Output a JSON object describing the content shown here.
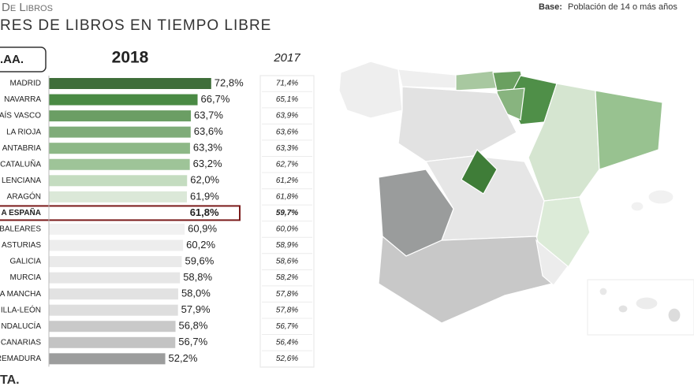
{
  "header": {
    "kicker": "De Libros",
    "title": "RES DE LIBROS EN TIEMPO LIBRE",
    "base_label": "Base:",
    "base_text": "Población de 14 o más años",
    "region_header": ".AA."
  },
  "chart_data": {
    "type": "bar",
    "orientation": "horizontal",
    "categories": [
      "MADRID",
      "NAVARRA",
      "AÍS VASCO",
      "LA RIOJA",
      "ANTABRIA",
      "CATALUÑA",
      "LENCIANA",
      "ARAGÓN",
      "A ESPAÑA",
      "BALEARES",
      "ASTURIAS",
      "GALICIA",
      "MURCIA",
      "A MANCHA",
      "ILLA-LEÓN",
      "NDALUCÍA",
      "CANARIAS",
      "REMADURA"
    ],
    "series": [
      {
        "name": "2018",
        "values": [
          72.8,
          66.7,
          63.7,
          63.6,
          63.3,
          63.2,
          62.0,
          61.9,
          61.8,
          60.9,
          60.2,
          59.6,
          58.8,
          58.0,
          57.9,
          56.8,
          56.7,
          52.2
        ],
        "value_labels": [
          "72,8%",
          "66,7%",
          "63,7%",
          "63,6%",
          "63,3%",
          "63,2%",
          "62,0%",
          "61,9%",
          "61,8%",
          "60,9%",
          "60,2%",
          "59,6%",
          "58,8%",
          "58,0%",
          "57,9%",
          "56,8%",
          "56,7%",
          "52,2%"
        ],
        "colors": [
          "#3f6e3a",
          "#4a8a44",
          "#6b9e64",
          "#7fac79",
          "#8db887",
          "#9ec498",
          "#c4dcc0",
          "#dbe8d8",
          "#ffffff",
          "#f1f1f1",
          "#ededed",
          "#eaeaea",
          "#e6e6e6",
          "#e2e2e2",
          "#dedede",
          "#c9c9c9",
          "#c3c3c3",
          "#9c9d9d"
        ]
      },
      {
        "name": "2017",
        "values": [
          71.4,
          65.1,
          63.9,
          63.6,
          63.3,
          62.7,
          61.2,
          61.8,
          59.7,
          60.0,
          58.9,
          58.6,
          58.2,
          57.8,
          57.8,
          56.7,
          56.4,
          52.6
        ],
        "value_labels": [
          "71,4%",
          "65,1%",
          "63,9%",
          "63,6%",
          "63,3%",
          "62,7%",
          "61,2%",
          "61,8%",
          "59,7%",
          "60,0%",
          "58,9%",
          "58,6%",
          "58,2%",
          "57,8%",
          "57,8%",
          "56,7%",
          "56,4%",
          "52,6%"
        ]
      }
    ],
    "xlim": [
      0,
      75
    ],
    "highlight": 8
  },
  "footer": {
    "logo": "TA."
  }
}
